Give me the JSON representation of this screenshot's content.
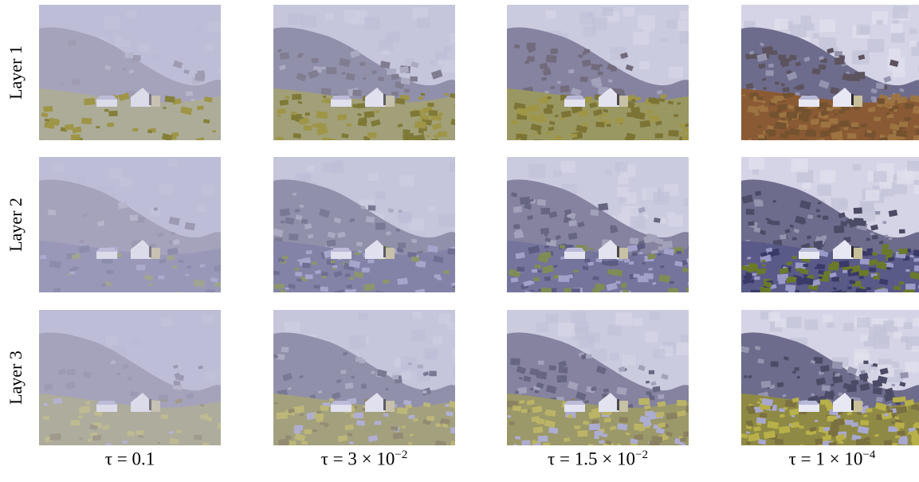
{
  "rows": [
    {
      "label": "Layer 1"
    },
    {
      "label": "Layer 2"
    },
    {
      "label": "Layer 3"
    }
  ],
  "columns": [
    {
      "tau_prefix": "τ = 0.1",
      "tau_exp": "",
      "strength": 0.15
    },
    {
      "tau_prefix": "τ = 3 × 10",
      "tau_exp": "−2",
      "strength": 0.45
    },
    {
      "tau_prefix": "τ = 1.5 × 10",
      "tau_exp": "−2",
      "strength": 0.65
    },
    {
      "tau_prefix": "τ = 1 × 10",
      "tau_exp": "−4",
      "strength": 1.0
    }
  ],
  "scene": {
    "subject": "painted landscape: mountains, white cottage, meadow",
    "colors": {
      "sky": "#b9b9d4",
      "mountain": "#6e6c8c",
      "meadow_l1": "#8c8a3c",
      "meadow_l1_strong": "#8a5a34",
      "meadow_l2": "#5a5a88",
      "meadow_l3": "#8e8a45",
      "house": "#e8e8f4"
    }
  }
}
